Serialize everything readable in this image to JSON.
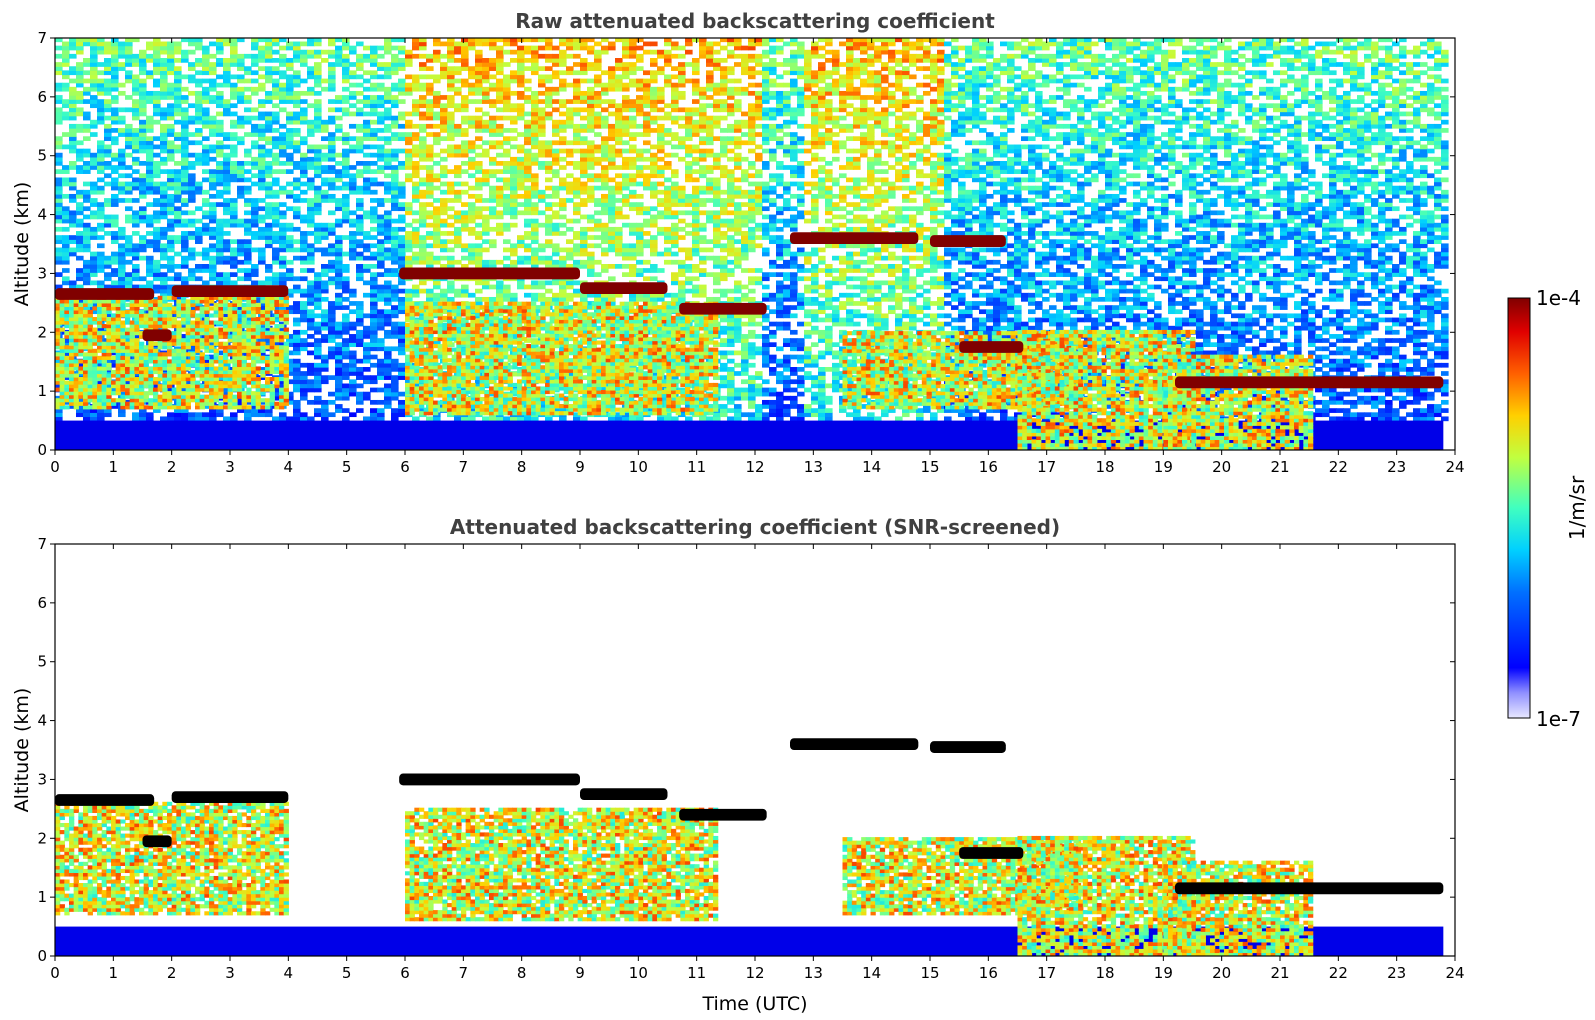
{
  "chart_data": [
    {
      "type": "heatmap",
      "title": "Raw attenuated backscattering coefficient",
      "xlabel": "",
      "ylabel": "Altitude (km)",
      "xlim": [
        0,
        24
      ],
      "ylim": [
        0,
        7
      ],
      "x_ticks": [
        0,
        1,
        2,
        3,
        4,
        5,
        6,
        7,
        8,
        9,
        10,
        11,
        12,
        13,
        14,
        15,
        16,
        17,
        18,
        19,
        20,
        21,
        22,
        23,
        24
      ],
      "y_ticks": [
        0,
        1,
        2,
        3,
        4,
        5,
        6,
        7
      ],
      "screened": false,
      "cloud_layers": [
        {
          "t": [
            0.0,
            1.7
          ],
          "alt": 2.65
        },
        {
          "t": [
            2.0,
            4.0
          ],
          "alt": 2.7
        },
        {
          "t": [
            1.5,
            2.0
          ],
          "alt": 1.95
        },
        {
          "t": [
            5.9,
            9.0
          ],
          "alt": 3.0
        },
        {
          "t": [
            9.0,
            10.5
          ],
          "alt": 2.75
        },
        {
          "t": [
            10.7,
            12.2
          ],
          "alt": 2.4
        },
        {
          "t": [
            12.6,
            14.8
          ],
          "alt": 3.6
        },
        {
          "t": [
            15.0,
            16.3
          ],
          "alt": 3.55
        },
        {
          "t": [
            15.5,
            16.6
          ],
          "alt": 1.75
        },
        {
          "t": [
            19.2,
            23.8
          ],
          "alt": 1.15
        }
      ],
      "aerosol_regions": [
        {
          "t": [
            0.0,
            4.0
          ],
          "alt": [
            0.7,
            2.6
          ]
        },
        {
          "t": [
            6.0,
            11.3
          ],
          "alt": [
            0.6,
            2.5
          ]
        },
        {
          "t": [
            13.5,
            17.5
          ],
          "alt": [
            0.7,
            2.0
          ]
        },
        {
          "t": [
            16.5,
            19.5
          ],
          "alt": [
            0.0,
            2.0
          ]
        },
        {
          "t": [
            19.0,
            21.5
          ],
          "alt": [
            0.0,
            1.6
          ]
        }
      ],
      "boundary_layer_top_km": 0.5
    },
    {
      "type": "heatmap",
      "title": "Attenuated backscattering coefficient (SNR-screened)",
      "xlabel": "Time (UTC)",
      "ylabel": "Altitude (km)",
      "xlim": [
        0,
        24
      ],
      "ylim": [
        0,
        7
      ],
      "x_ticks": [
        0,
        1,
        2,
        3,
        4,
        5,
        6,
        7,
        8,
        9,
        10,
        11,
        12,
        13,
        14,
        15,
        16,
        17,
        18,
        19,
        20,
        21,
        22,
        23,
        24
      ],
      "y_ticks": [
        0,
        1,
        2,
        3,
        4,
        5,
        6,
        7
      ],
      "screened": true
    }
  ],
  "colorbar": {
    "label": "1/m/sr",
    "max_label": "1e-4",
    "min_label": "1e-7",
    "colormap": "jet"
  },
  "colors": {
    "title": "#404040",
    "background": "#ffffff",
    "cloud_core": "#800000",
    "boundary_layer": "#0000e8"
  }
}
